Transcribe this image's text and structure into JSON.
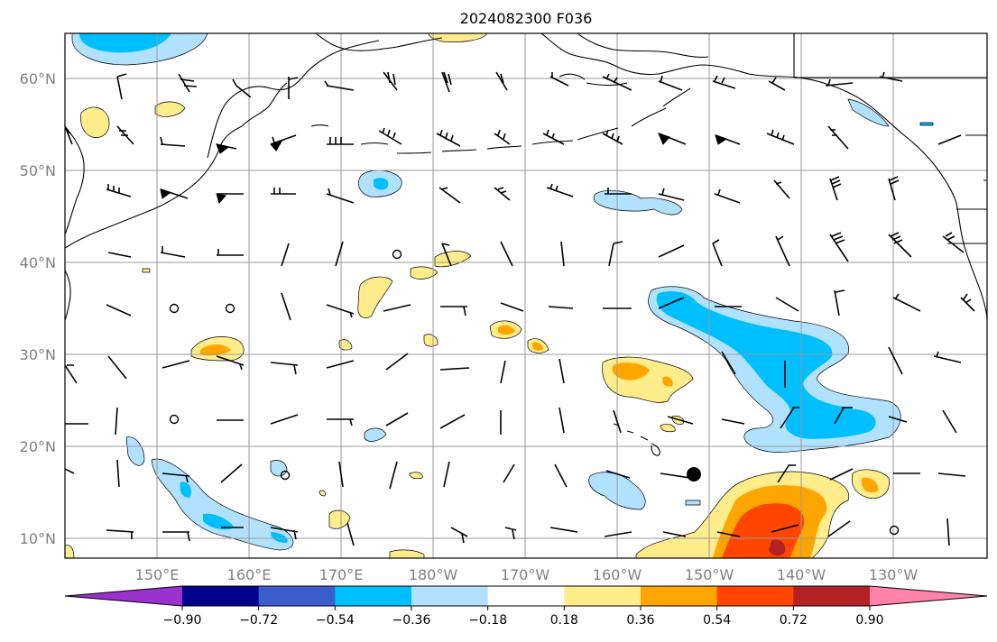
{
  "title": "2024082300 F036",
  "lat_labels": [
    "60°N",
    "50°N",
    "40°N",
    "30°N",
    "20°N",
    "10°N"
  ],
  "lon_labels": [
    "150°E",
    "160°E",
    "170°E",
    "180°W",
    "170°W",
    "160°W",
    "150°W",
    "140°W",
    "130°W"
  ],
  "colorbar": {
    "colors": [
      "#9a32cd",
      "#00008b",
      "#3a5fcd",
      "#00bfff",
      "#b0e2ff",
      "#ffffff",
      "#ffec8b",
      "#ffa500",
      "#ff4500",
      "#b22222",
      "#ff82ab"
    ],
    "tick_labels": [
      "−0.90",
      "−0.72",
      "−0.54",
      "−0.36",
      "−0.18",
      "0.18",
      "0.36",
      "0.54",
      "0.72",
      "0.90"
    ]
  },
  "palette": {
    "coast": "#000000",
    "grid": "#9a9a9a",
    "label_gray": "#808080"
  }
}
